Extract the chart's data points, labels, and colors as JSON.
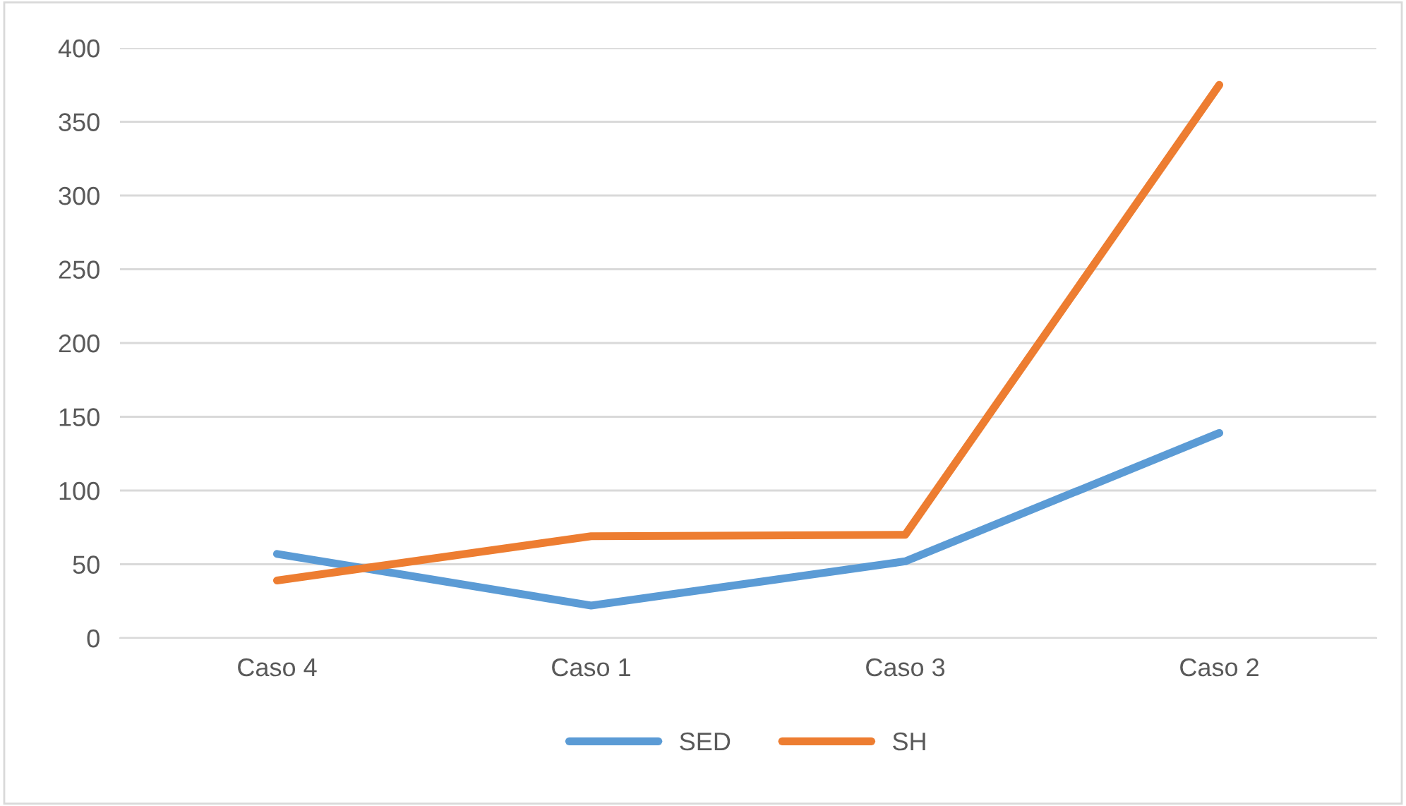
{
  "chart_data": {
    "type": "line",
    "categories": [
      "Caso 4",
      "Caso 1",
      "Caso 3",
      "Caso 2"
    ],
    "series": [
      {
        "name": "SED",
        "color": "#5b9bd5",
        "values": [
          57,
          22,
          52,
          139
        ]
      },
      {
        "name": "SH",
        "color": "#ed7d31",
        "values": [
          39,
          69,
          70,
          375
        ]
      }
    ],
    "ylim": [
      0,
      400
    ],
    "yticks": [
      0,
      50,
      100,
      150,
      200,
      250,
      300,
      350,
      400
    ],
    "grid": "y",
    "legend": "bottom",
    "marker": "none",
    "line_style": "solid"
  }
}
